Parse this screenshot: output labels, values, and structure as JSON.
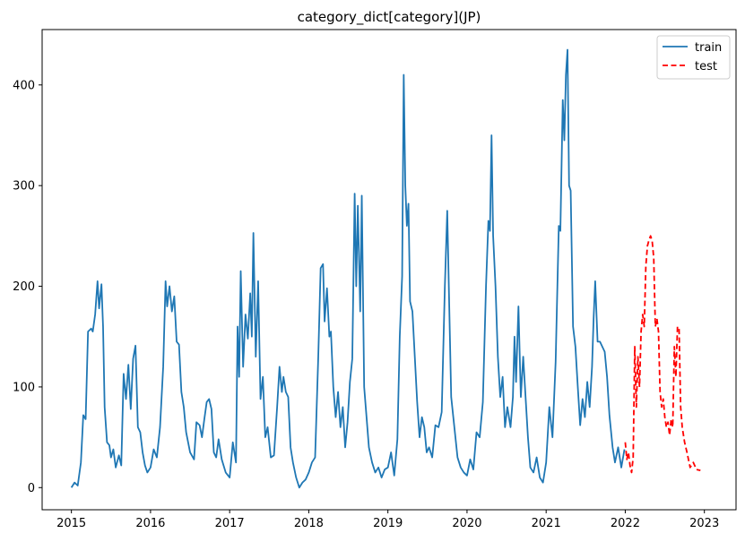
{
  "chart_data": {
    "type": "line",
    "title": "category_dict[category](JP)",
    "xlabel": "",
    "ylabel": "",
    "xlim": [
      2014.63,
      2023.4
    ],
    "ylim": [
      -22,
      455
    ],
    "x_ticks": [
      2015,
      2016,
      2017,
      2018,
      2019,
      2020,
      2021,
      2022,
      2023
    ],
    "x_tick_labels": [
      "2015",
      "2016",
      "2017",
      "2018",
      "2019",
      "2020",
      "2021",
      "2022",
      "2023"
    ],
    "y_ticks": [
      0,
      100,
      200,
      300,
      400
    ],
    "y_tick_labels": [
      "0",
      "100",
      "200",
      "300",
      "400"
    ],
    "legend": {
      "position": "top-right",
      "entries": [
        "train",
        "test"
      ]
    },
    "grid": false,
    "series": [
      {
        "name": "train",
        "color": "#1f77b4",
        "style": "solid",
        "points": [
          [
            2015.0,
            0
          ],
          [
            2015.04,
            5
          ],
          [
            2015.08,
            2
          ],
          [
            2015.12,
            25
          ],
          [
            2015.15,
            72
          ],
          [
            2015.18,
            68
          ],
          [
            2015.21,
            155
          ],
          [
            2015.25,
            158
          ],
          [
            2015.27,
            155
          ],
          [
            2015.3,
            172
          ],
          [
            2015.33,
            205
          ],
          [
            2015.35,
            178
          ],
          [
            2015.38,
            202
          ],
          [
            2015.4,
            160
          ],
          [
            2015.42,
            80
          ],
          [
            2015.45,
            45
          ],
          [
            2015.48,
            42
          ],
          [
            2015.5,
            30
          ],
          [
            2015.53,
            38
          ],
          [
            2015.56,
            20
          ],
          [
            2015.6,
            32
          ],
          [
            2015.63,
            22
          ],
          [
            2015.66,
            113
          ],
          [
            2015.69,
            88
          ],
          [
            2015.72,
            122
          ],
          [
            2015.75,
            78
          ],
          [
            2015.78,
            128
          ],
          [
            2015.81,
            141
          ],
          [
            2015.84,
            60
          ],
          [
            2015.87,
            55
          ],
          [
            2015.9,
            35
          ],
          [
            2015.93,
            22
          ],
          [
            2015.96,
            15
          ],
          [
            2016.0,
            20
          ],
          [
            2016.04,
            38
          ],
          [
            2016.08,
            30
          ],
          [
            2016.12,
            60
          ],
          [
            2016.16,
            120
          ],
          [
            2016.19,
            205
          ],
          [
            2016.21,
            180
          ],
          [
            2016.24,
            200
          ],
          [
            2016.27,
            175
          ],
          [
            2016.3,
            190
          ],
          [
            2016.33,
            145
          ],
          [
            2016.36,
            142
          ],
          [
            2016.39,
            95
          ],
          [
            2016.42,
            80
          ],
          [
            2016.45,
            55
          ],
          [
            2016.5,
            35
          ],
          [
            2016.55,
            28
          ],
          [
            2016.58,
            65
          ],
          [
            2016.62,
            62
          ],
          [
            2016.65,
            50
          ],
          [
            2016.68,
            68
          ],
          [
            2016.71,
            85
          ],
          [
            2016.74,
            88
          ],
          [
            2016.77,
            78
          ],
          [
            2016.8,
            35
          ],
          [
            2016.83,
            30
          ],
          [
            2016.86,
            48
          ],
          [
            2016.9,
            28
          ],
          [
            2016.95,
            15
          ],
          [
            2017.0,
            10
          ],
          [
            2017.04,
            45
          ],
          [
            2017.08,
            25
          ],
          [
            2017.1,
            160
          ],
          [
            2017.12,
            110
          ],
          [
            2017.14,
            215
          ],
          [
            2017.17,
            120
          ],
          [
            2017.2,
            172
          ],
          [
            2017.23,
            148
          ],
          [
            2017.26,
            193
          ],
          [
            2017.28,
            150
          ],
          [
            2017.3,
            253
          ],
          [
            2017.33,
            130
          ],
          [
            2017.36,
            205
          ],
          [
            2017.39,
            88
          ],
          [
            2017.42,
            110
          ],
          [
            2017.45,
            50
          ],
          [
            2017.48,
            60
          ],
          [
            2017.52,
            30
          ],
          [
            2017.56,
            32
          ],
          [
            2017.6,
            80
          ],
          [
            2017.63,
            120
          ],
          [
            2017.66,
            95
          ],
          [
            2017.68,
            110
          ],
          [
            2017.71,
            95
          ],
          [
            2017.74,
            90
          ],
          [
            2017.77,
            40
          ],
          [
            2017.8,
            25
          ],
          [
            2017.84,
            10
          ],
          [
            2017.88,
            0
          ],
          [
            2017.92,
            5
          ],
          [
            2017.96,
            8
          ],
          [
            2018.0,
            15
          ],
          [
            2018.04,
            25
          ],
          [
            2018.08,
            30
          ],
          [
            2018.12,
            130
          ],
          [
            2018.15,
            218
          ],
          [
            2018.18,
            222
          ],
          [
            2018.2,
            165
          ],
          [
            2018.23,
            198
          ],
          [
            2018.26,
            150
          ],
          [
            2018.28,
            155
          ],
          [
            2018.31,
            100
          ],
          [
            2018.34,
            70
          ],
          [
            2018.37,
            95
          ],
          [
            2018.4,
            60
          ],
          [
            2018.43,
            80
          ],
          [
            2018.46,
            40
          ],
          [
            2018.49,
            65
          ],
          [
            2018.52,
            105
          ],
          [
            2018.55,
            128
          ],
          [
            2018.58,
            292
          ],
          [
            2018.6,
            200
          ],
          [
            2018.62,
            280
          ],
          [
            2018.65,
            175
          ],
          [
            2018.67,
            290
          ],
          [
            2018.7,
            100
          ],
          [
            2018.73,
            70
          ],
          [
            2018.76,
            40
          ],
          [
            2018.8,
            25
          ],
          [
            2018.84,
            15
          ],
          [
            2018.88,
            20
          ],
          [
            2018.92,
            10
          ],
          [
            2018.96,
            18
          ],
          [
            2019.0,
            20
          ],
          [
            2019.04,
            35
          ],
          [
            2019.08,
            12
          ],
          [
            2019.12,
            48
          ],
          [
            2019.15,
            150
          ],
          [
            2019.18,
            210
          ],
          [
            2019.2,
            410
          ],
          [
            2019.22,
            300
          ],
          [
            2019.24,
            260
          ],
          [
            2019.26,
            282
          ],
          [
            2019.28,
            185
          ],
          [
            2019.31,
            175
          ],
          [
            2019.34,
            130
          ],
          [
            2019.37,
            85
          ],
          [
            2019.4,
            50
          ],
          [
            2019.43,
            70
          ],
          [
            2019.46,
            60
          ],
          [
            2019.49,
            35
          ],
          [
            2019.52,
            40
          ],
          [
            2019.56,
            30
          ],
          [
            2019.6,
            62
          ],
          [
            2019.64,
            60
          ],
          [
            2019.68,
            75
          ],
          [
            2019.72,
            200
          ],
          [
            2019.75,
            275
          ],
          [
            2019.77,
            200
          ],
          [
            2019.8,
            90
          ],
          [
            2019.84,
            60
          ],
          [
            2019.88,
            30
          ],
          [
            2019.92,
            20
          ],
          [
            2019.96,
            15
          ],
          [
            2020.0,
            12
          ],
          [
            2020.04,
            28
          ],
          [
            2020.08,
            18
          ],
          [
            2020.12,
            55
          ],
          [
            2020.16,
            50
          ],
          [
            2020.2,
            85
          ],
          [
            2020.24,
            200
          ],
          [
            2020.27,
            265
          ],
          [
            2020.29,
            255
          ],
          [
            2020.31,
            350
          ],
          [
            2020.33,
            250
          ],
          [
            2020.36,
            200
          ],
          [
            2020.39,
            130
          ],
          [
            2020.42,
            90
          ],
          [
            2020.45,
            110
          ],
          [
            2020.48,
            60
          ],
          [
            2020.51,
            80
          ],
          [
            2020.55,
            60
          ],
          [
            2020.58,
            90
          ],
          [
            2020.6,
            150
          ],
          [
            2020.62,
            105
          ],
          [
            2020.65,
            180
          ],
          [
            2020.68,
            90
          ],
          [
            2020.71,
            130
          ],
          [
            2020.74,
            90
          ],
          [
            2020.77,
            50
          ],
          [
            2020.8,
            20
          ],
          [
            2020.84,
            15
          ],
          [
            2020.88,
            30
          ],
          [
            2020.92,
            10
          ],
          [
            2020.96,
            5
          ],
          [
            2021.0,
            25
          ],
          [
            2021.04,
            80
          ],
          [
            2021.08,
            50
          ],
          [
            2021.12,
            125
          ],
          [
            2021.16,
            260
          ],
          [
            2021.18,
            255
          ],
          [
            2021.21,
            385
          ],
          [
            2021.23,
            345
          ],
          [
            2021.25,
            410
          ],
          [
            2021.27,
            435
          ],
          [
            2021.29,
            300
          ],
          [
            2021.31,
            295
          ],
          [
            2021.34,
            160
          ],
          [
            2021.37,
            140
          ],
          [
            2021.4,
            100
          ],
          [
            2021.43,
            62
          ],
          [
            2021.46,
            88
          ],
          [
            2021.49,
            70
          ],
          [
            2021.52,
            105
          ],
          [
            2021.55,
            80
          ],
          [
            2021.58,
            120
          ],
          [
            2021.6,
            168
          ],
          [
            2021.62,
            205
          ],
          [
            2021.65,
            145
          ],
          [
            2021.68,
            145
          ],
          [
            2021.71,
            140
          ],
          [
            2021.74,
            135
          ],
          [
            2021.77,
            110
          ],
          [
            2021.8,
            72
          ],
          [
            2021.84,
            40
          ],
          [
            2021.87,
            25
          ],
          [
            2021.91,
            40
          ],
          [
            2021.95,
            20
          ],
          [
            2021.99,
            38
          ]
        ]
      },
      {
        "name": "test",
        "color": "#ff0000",
        "style": "dashed",
        "points": [
          [
            2022.0,
            45
          ],
          [
            2022.02,
            28
          ],
          [
            2022.04,
            35
          ],
          [
            2022.06,
            22
          ],
          [
            2022.08,
            15
          ],
          [
            2022.1,
            30
          ],
          [
            2022.12,
            140
          ],
          [
            2022.14,
            80
          ],
          [
            2022.16,
            130
          ],
          [
            2022.18,
            100
          ],
          [
            2022.2,
            155
          ],
          [
            2022.22,
            172
          ],
          [
            2022.24,
            160
          ],
          [
            2022.26,
            220
          ],
          [
            2022.28,
            240
          ],
          [
            2022.3,
            246
          ],
          [
            2022.32,
            250
          ],
          [
            2022.34,
            245
          ],
          [
            2022.36,
            228
          ],
          [
            2022.38,
            160
          ],
          [
            2022.4,
            168
          ],
          [
            2022.42,
            155
          ],
          [
            2022.44,
            95
          ],
          [
            2022.46,
            80
          ],
          [
            2022.48,
            88
          ],
          [
            2022.5,
            70
          ],
          [
            2022.52,
            60
          ],
          [
            2022.54,
            65
          ],
          [
            2022.56,
            52
          ],
          [
            2022.58,
            68
          ],
          [
            2022.6,
            60
          ],
          [
            2022.62,
            140
          ],
          [
            2022.64,
            110
          ],
          [
            2022.66,
            160
          ],
          [
            2022.68,
            158
          ],
          [
            2022.7,
            80
          ],
          [
            2022.72,
            60
          ],
          [
            2022.75,
            45
          ],
          [
            2022.78,
            35
          ],
          [
            2022.82,
            20
          ],
          [
            2022.86,
            25
          ],
          [
            2022.9,
            18
          ],
          [
            2022.95,
            17
          ]
        ]
      }
    ]
  }
}
